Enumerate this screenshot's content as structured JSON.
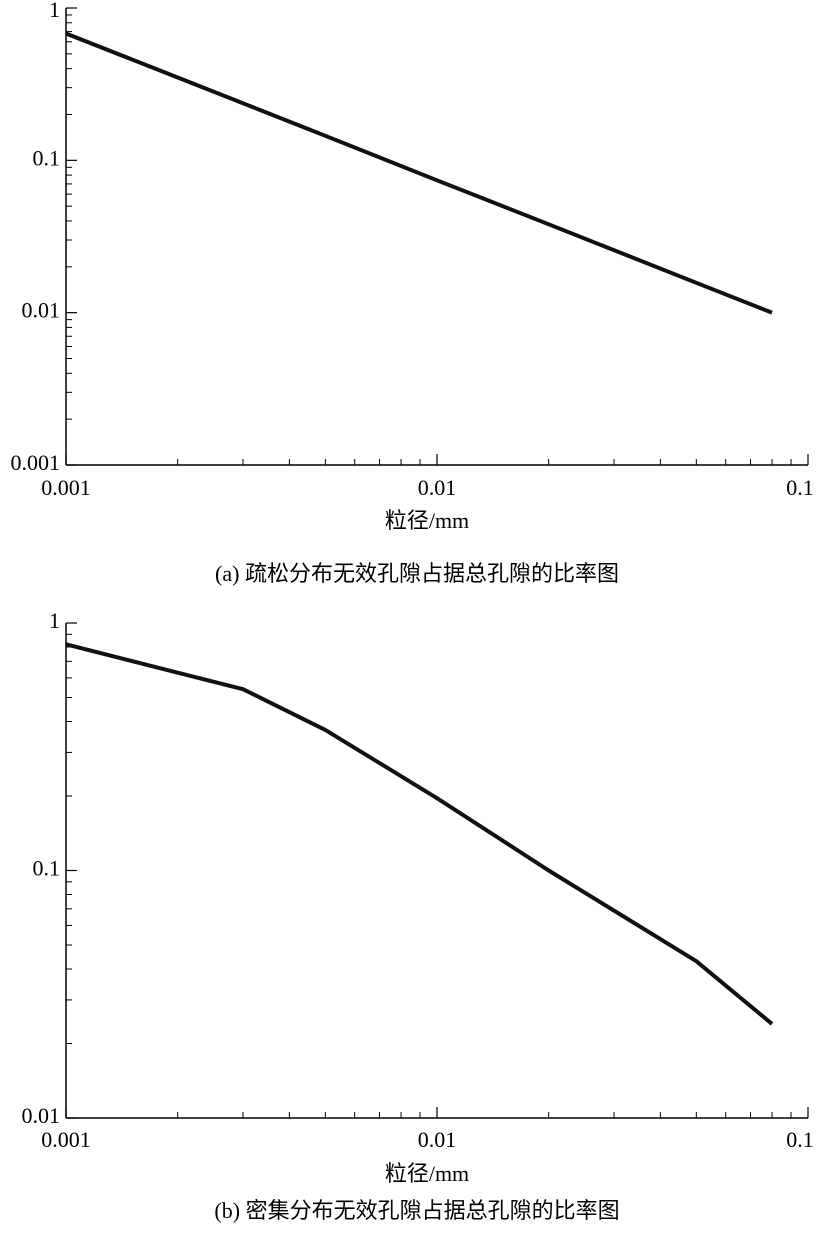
{
  "chart_data": [
    {
      "type": "line",
      "x_label": "粒径/mm",
      "caption": "(a) 疏松分布无效孔隙占据总孔隙的比率图",
      "x": [
        0.001,
        0.002,
        0.005,
        0.01,
        0.02,
        0.05,
        0.08
      ],
      "values": [
        0.68,
        0.35,
        0.145,
        0.074,
        0.038,
        0.0157,
        0.01
      ],
      "color": "#111111",
      "xlim": [
        0.001,
        0.1
      ],
      "ylim": [
        0.001,
        1
      ],
      "xticks": [
        0.001,
        0.01,
        0.1
      ],
      "yticks": [
        0.001,
        0.01,
        0.1,
        1
      ],
      "xscale": "log",
      "yscale": "log"
    },
    {
      "type": "line",
      "x_label": "粒径/mm",
      "caption": "(b) 密集分布无效孔隙占据总孔隙的比率图",
      "x": [
        0.001,
        0.002,
        0.003,
        0.005,
        0.01,
        0.02,
        0.05,
        0.08
      ],
      "values": [
        0.82,
        0.63,
        0.54,
        0.37,
        0.196,
        0.1,
        0.043,
        0.024
      ],
      "color": "#111111",
      "xlim": [
        0.001,
        0.1
      ],
      "ylim": [
        0.01,
        1
      ],
      "xticks": [
        0.001,
        0.01,
        0.1
      ],
      "yticks": [
        0.01,
        0.1,
        1
      ],
      "xscale": "log",
      "yscale": "log"
    }
  ]
}
